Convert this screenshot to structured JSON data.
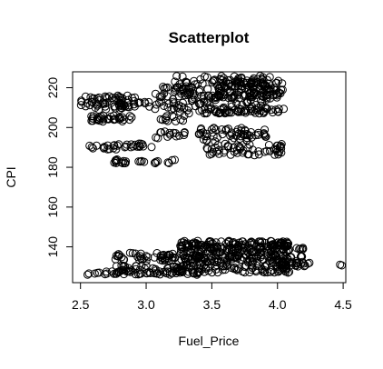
{
  "chart_data": {
    "type": "scatter",
    "title": "Scatterplot",
    "xlabel": "Fuel_Price",
    "ylabel": "CPI",
    "xlim": [
      2.44,
      4.52
    ],
    "ylim": [
      122,
      228
    ],
    "x_ticks": [
      2.5,
      3.0,
      3.5,
      4.0,
      4.5
    ],
    "x_tick_labels": [
      "2.5",
      "3.0",
      "3.5",
      "4.0",
      "4.5"
    ],
    "y_ticks": [
      140,
      160,
      180,
      200,
      220
    ],
    "y_tick_labels": [
      "140",
      "160",
      "180",
      "200",
      "220"
    ],
    "grid": false,
    "legend": "none",
    "series": [
      {
        "clusters": [
          {
            "x": [
              2.5,
              2.95
            ],
            "y": [
              209,
              216
            ]
          },
          {
            "x": [
              2.55,
              2.9
            ],
            "y": [
              203,
              206
            ]
          },
          {
            "x": [
              2.9,
              3.2
            ],
            "y": [
              209,
              213
            ]
          },
          {
            "x": [
              3.05,
              3.4
            ],
            "y": [
              215,
              221
            ]
          },
          {
            "x": [
              3.2,
              3.95
            ],
            "y": [
              207,
              226
            ]
          },
          {
            "x": [
              3.55,
              4.05
            ],
            "y": [
              215,
              225
            ]
          },
          {
            "x": [
              3.45,
              4.05
            ],
            "y": [
              207,
              210
            ]
          },
          {
            "x": [
              2.95,
              3.3
            ],
            "y": [
              203,
              206
            ]
          },
          {
            "x": [
              3.1,
              3.3
            ],
            "y": [
              196,
              198
            ]
          },
          {
            "x": [
              3.4,
              3.95
            ],
            "y": [
              193,
              200
            ]
          },
          {
            "x": [
              3.45,
              4.05
            ],
            "y": [
              186,
              192
            ]
          },
          {
            "x": [
              2.55,
              2.8
            ],
            "y": [
              189,
              191
            ]
          },
          {
            "x": [
              2.7,
              3.0
            ],
            "y": [
              190,
              192
            ]
          },
          {
            "x": [
              2.75,
              3.25
            ],
            "y": [
              182,
              184
            ]
          },
          {
            "x": [
              3.0,
              3.3
            ],
            "y": [
              190,
              196
            ]
          },
          {
            "x": [
              2.72,
              3.3
            ],
            "y": [
              133,
              137
            ]
          },
          {
            "x": [
              2.55,
              3.4
            ],
            "y": [
              126,
              128
            ]
          },
          {
            "x": [
              2.75,
              3.3
            ],
            "y": [
              128,
              131
            ]
          },
          {
            "x": [
              3.25,
              4.1
            ],
            "y": [
              137,
              143
            ]
          },
          {
            "x": [
              3.3,
              4.2
            ],
            "y": [
              132,
              136
            ]
          },
          {
            "x": [
              3.2,
              4.1
            ],
            "y": [
              127,
              131
            ]
          },
          {
            "x": [
              4.0,
              4.28
            ],
            "y": [
              130,
              132
            ]
          },
          {
            "x": [
              3.9,
              4.2
            ],
            "y": [
              138,
              141
            ]
          },
          {
            "x": [
              4.45,
              4.49
            ],
            "y": [
              130,
              132
            ]
          }
        ],
        "points_per_cluster": [
          70,
          35,
          15,
          25,
          180,
          90,
          35,
          12,
          10,
          60,
          55,
          12,
          18,
          25,
          6,
          55,
          55,
          30,
          180,
          120,
          90,
          20,
          20,
          2
        ]
      }
    ]
  }
}
